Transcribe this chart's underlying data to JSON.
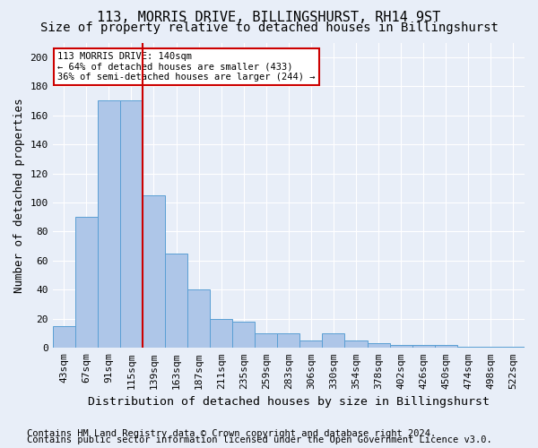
{
  "title": "113, MORRIS DRIVE, BILLINGSHURST, RH14 9ST",
  "subtitle": "Size of property relative to detached houses in Billingshurst",
  "xlabel": "Distribution of detached houses by size in Billingshurst",
  "ylabel": "Number of detached properties",
  "footer_line1": "Contains HM Land Registry data © Crown copyright and database right 2024.",
  "footer_line2": "Contains public sector information licensed under the Open Government Licence v3.0.",
  "bin_labels": [
    "43sqm",
    "67sqm",
    "91sqm",
    "115sqm",
    "139sqm",
    "163sqm",
    "187sqm",
    "211sqm",
    "235sqm",
    "259sqm",
    "283sqm",
    "306sqm",
    "330sqm",
    "354sqm",
    "378sqm",
    "402sqm",
    "426sqm",
    "450sqm",
    "474sqm",
    "498sqm",
    "522sqm"
  ],
  "bar_heights": [
    15,
    90,
    170,
    170,
    105,
    65,
    40,
    20,
    18,
    10,
    10,
    5,
    10,
    5,
    3,
    2,
    2,
    2,
    1,
    1,
    1
  ],
  "bar_color": "#aec6e8",
  "bar_edge_color": "#5a9fd4",
  "annotation_line1": "113 MORRIS DRIVE: 140sqm",
  "annotation_line2": "← 64% of detached houses are smaller (433)",
  "annotation_line3": "36% of semi-detached houses are larger (244) →",
  "annotation_box_color": "#ffffff",
  "annotation_box_edge_color": "#cc0000",
  "vline_color": "#cc0000",
  "background_color": "#e8eef8",
  "ylim": [
    0,
    210
  ],
  "yticks": [
    0,
    20,
    40,
    60,
    80,
    100,
    120,
    140,
    160,
    180,
    200
  ],
  "grid_color": "#ffffff",
  "title_fontsize": 11,
  "subtitle_fontsize": 10,
  "axis_label_fontsize": 9,
  "tick_fontsize": 8,
  "footer_fontsize": 7.5,
  "vline_x": 3.5
}
